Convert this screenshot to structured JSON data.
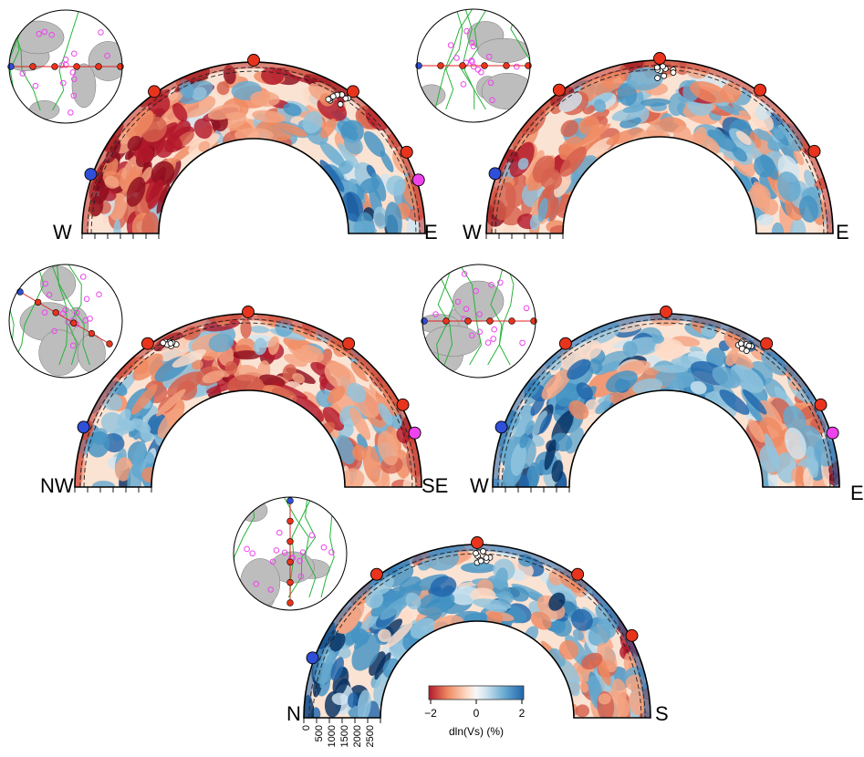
{
  "panels": [
    {
      "id": "p1",
      "left_label": "W",
      "right_label": "E",
      "theme": "warm_top_blue_right"
    },
    {
      "id": "p2",
      "left_label": "W",
      "right_label": "E",
      "theme": "mixed"
    },
    {
      "id": "p3",
      "left_label": "NW",
      "right_label": "SE",
      "theme": "warm_center"
    },
    {
      "id": "p4",
      "left_label": "W",
      "right_label": "E",
      "theme": "blue_dominant"
    },
    {
      "id": "p5",
      "left_label": "N",
      "right_label": "S",
      "theme": "blue_dominant"
    }
  ],
  "depth_axis": {
    "ticks": [
      "0",
      "500",
      "1000",
      "1500",
      "2000",
      "2500"
    ]
  },
  "colorbar": {
    "label": "dln(Vs) (%)",
    "tick_labels": [
      "−2",
      "0",
      "2"
    ],
    "colors": [
      "#b2182b",
      "#ef8a62",
      "#fddbc7",
      "#f7f7f7",
      "#d1e5f0",
      "#67a9cf",
      "#2166ac"
    ]
  },
  "marker_colors": {
    "station_red": "#e8341c",
    "station_blue": "#2f4fd8",
    "station_magenta": "#ee44ee",
    "event_white": "#ffffff",
    "inset_land": "#bdbdbd",
    "plate_boundary": "#27b33a"
  }
}
